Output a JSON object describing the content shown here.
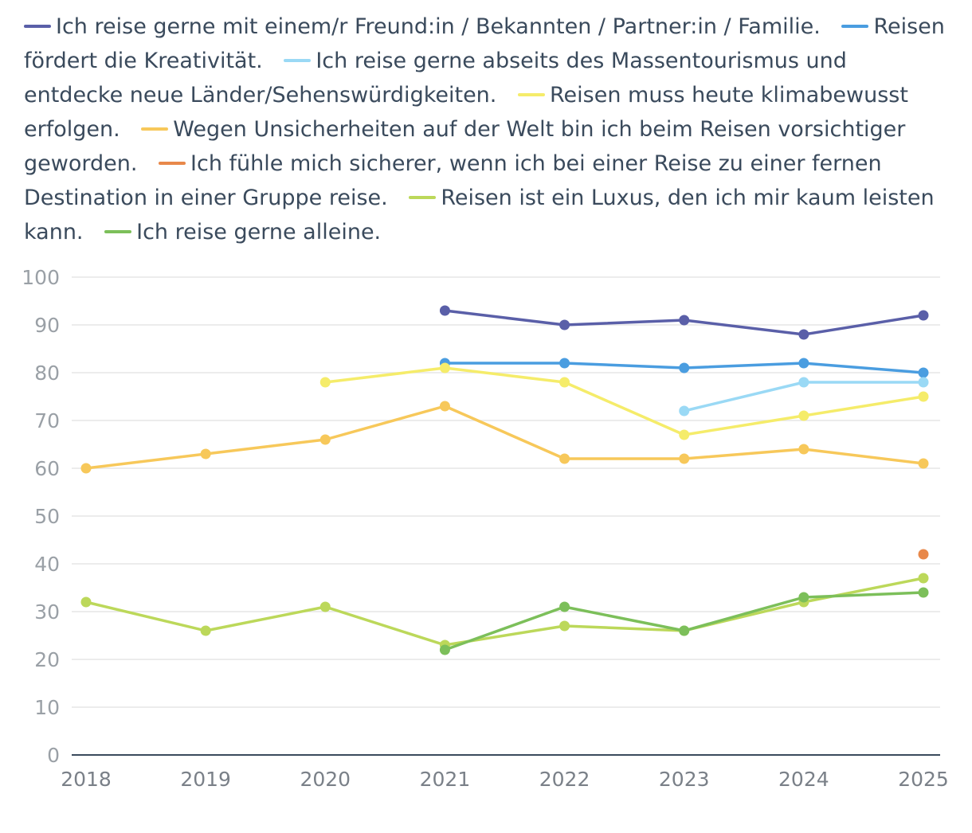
{
  "chart_data": {
    "type": "line",
    "categories": [
      "2018",
      "2019",
      "2020",
      "2021",
      "2022",
      "2023",
      "2024",
      "2025"
    ],
    "ylim": [
      0,
      100
    ],
    "yticks": [
      0,
      10,
      20,
      30,
      40,
      50,
      60,
      70,
      80,
      90,
      100
    ],
    "grid": true,
    "legend_position": "top",
    "series": [
      {
        "name": "Ich reise gerne mit einem/r Freund:in / Bekannten / Partner:in / Familie.",
        "color": "#5a5fa8",
        "values": [
          null,
          null,
          null,
          93,
          90,
          91,
          88,
          92
        ]
      },
      {
        "name": "Reisen fördert die Kreativität.",
        "color": "#4a9de0",
        "values": [
          null,
          null,
          null,
          82,
          82,
          81,
          82,
          80
        ]
      },
      {
        "name": "Ich reise gerne abseits des Massentourismus und entdecke neue Länder/Sehenswürdigkeiten.",
        "color": "#9ad9f5",
        "values": [
          null,
          null,
          null,
          null,
          null,
          72,
          78,
          78
        ]
      },
      {
        "name": "Reisen muss heute klimabewusst erfolgen.",
        "color": "#f5ec6a",
        "values": [
          null,
          null,
          78,
          81,
          78,
          67,
          71,
          75
        ]
      },
      {
        "name": "Wegen Unsicherheiten auf der Welt bin ich beim Reisen vorsichtiger geworden.",
        "color": "#f7c85a",
        "values": [
          60,
          63,
          66,
          73,
          62,
          62,
          64,
          61
        ]
      },
      {
        "name": "Ich fühle mich sicherer, wenn ich bei einer Reise zu einer fernen Destination in einer Gruppe reise.",
        "color": "#e8884a",
        "values": [
          null,
          null,
          null,
          null,
          null,
          null,
          null,
          42
        ]
      },
      {
        "name": "Reisen ist ein Luxus, den ich mir kaum leisten kann.",
        "color": "#bcd85a",
        "values": [
          32,
          26,
          31,
          23,
          27,
          26,
          32,
          37
        ]
      },
      {
        "name": "Ich reise gerne alleine.",
        "color": "#7cbf5a",
        "values": [
          null,
          null,
          null,
          22,
          31,
          26,
          33,
          34
        ]
      }
    ]
  }
}
